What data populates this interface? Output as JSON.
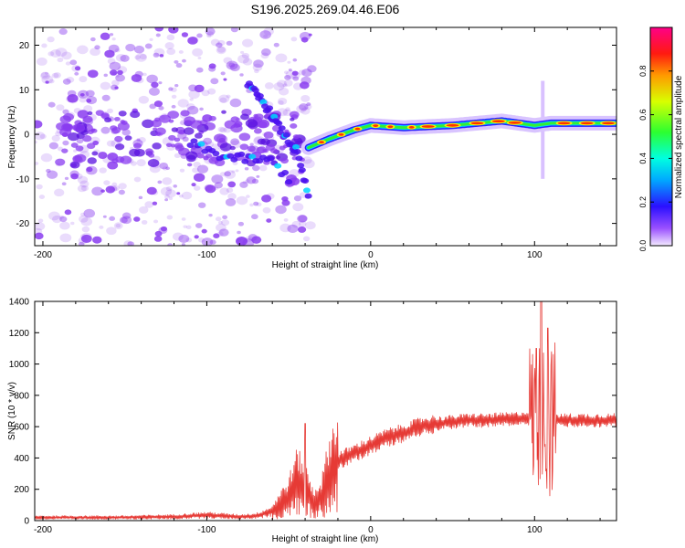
{
  "figure_title": "S196.2025.269.04.46.E06",
  "colors": {
    "snr_line": "#e63a35",
    "spectrogram_dots": "#8a3cf0",
    "ridge_colors": [
      "#2a20ff",
      "#00d4ff",
      "#33ee33",
      "#ffee00",
      "#ff3300"
    ]
  },
  "chart_data": [
    {
      "type": "heatmap",
      "title": "S196.2025.269.04.46.E06",
      "xlabel": "Height of straight line (km)",
      "ylabel": "Frequency (Hz)",
      "xlim": [
        -205,
        150
      ],
      "ylim": [
        -25,
        24
      ],
      "xticks": [
        -200,
        -100,
        0,
        100
      ],
      "xtick_labels": [
        "-200",
        "-100",
        "0",
        "100"
      ],
      "yticks": [
        -20,
        -10,
        0,
        10,
        20
      ],
      "ytick_labels": [
        "-20",
        "-10",
        "0",
        "10",
        "20"
      ],
      "colorbar": {
        "label": "Normalized spectral amplitude",
        "range": [
          0,
          1
        ],
        "ticks": [
          0,
          0.2,
          0.4,
          0.6,
          0.8
        ],
        "tick_labels": [
          "0.0",
          "0.2",
          "0.4",
          "0.6",
          "0.8"
        ],
        "colormap": "rainbow"
      },
      "features": {
        "noise_region_x": [
          -205,
          -35
        ],
        "descending_branch": [
          [
            -75,
            11
          ],
          [
            -65,
            7
          ],
          [
            -55,
            1
          ],
          [
            -45,
            -4
          ],
          [
            -38,
            -14
          ]
        ],
        "lower_branch": [
          [
            -110,
            -2
          ],
          [
            -90,
            -5
          ],
          [
            -60,
            -6
          ],
          [
            -50,
            -10
          ]
        ],
        "main_ridge": [
          [
            -38,
            -3
          ],
          [
            -25,
            -1
          ],
          [
            -10,
            1
          ],
          [
            0,
            2
          ],
          [
            20,
            1.5
          ],
          [
            50,
            2
          ],
          [
            80,
            3
          ],
          [
            100,
            2
          ],
          [
            110,
            2.5
          ],
          [
            150,
            2.5
          ]
        ],
        "vertical_streak_x": 105,
        "vertical_streak_y": [
          -10,
          12
        ]
      }
    },
    {
      "type": "line",
      "title": "",
      "xlabel": "Height of straight line (km)",
      "ylabel": "SNR (10 * v/v)",
      "xlim": [
        -205,
        150
      ],
      "ylim": [
        0,
        1400
      ],
      "xticks": [
        -200,
        -100,
        0,
        100
      ],
      "xtick_labels": [
        "-200",
        "-100",
        "0",
        "100"
      ],
      "yticks": [
        0,
        200,
        400,
        600,
        800,
        1000,
        1200,
        1400
      ],
      "ytick_labels": [
        "0",
        "200",
        "400",
        "600",
        "800",
        "1000",
        "1200",
        "1400"
      ],
      "series": [
        {
          "name": "SNR",
          "envelope": {
            "x": [
              -205,
              -150,
              -120,
              -100,
              -90,
              -80,
              -70,
              -60,
              -50,
              -45,
              -40,
              -35,
              -30,
              -25,
              -20,
              -10,
              0,
              10,
              20,
              30,
              40,
              50,
              60,
              70,
              80,
              90,
              95,
              100,
              105,
              110,
              115,
              120,
              130,
              150
            ],
            "y": [
              20,
              20,
              25,
              35,
              30,
              25,
              30,
              60,
              150,
              250,
              200,
              110,
              150,
              300,
              380,
              430,
              480,
              530,
              560,
              600,
              620,
              630,
              640,
              640,
              645,
              650,
              660,
              640,
              620,
              640,
              640,
              640,
              640,
              640
            ]
          },
          "peaks": [
            [
              -40,
              620
            ],
            [
              104,
              1400
            ],
            [
              108,
              1230
            ],
            [
              101,
              1100
            ]
          ]
        }
      ]
    }
  ]
}
